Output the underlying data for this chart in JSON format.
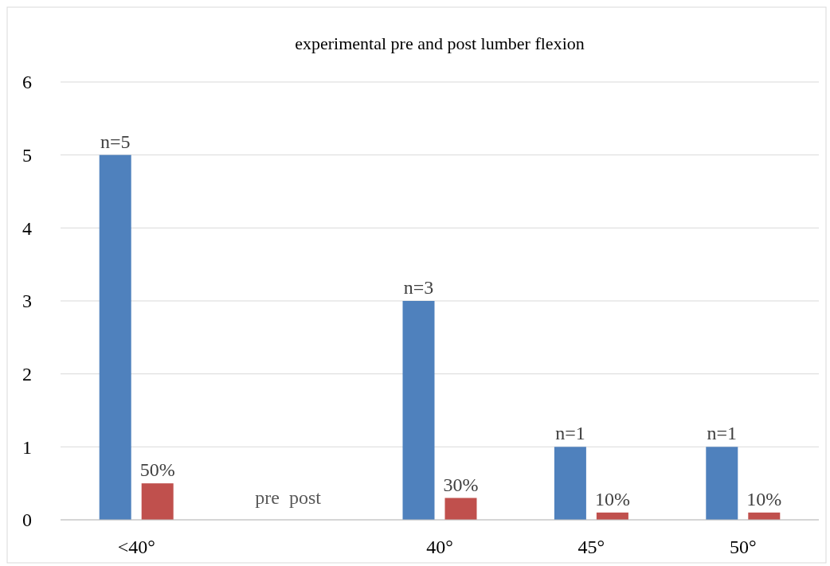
{
  "chart_data": {
    "type": "bar",
    "title": "experimental pre and post lumber flexion",
    "categories": [
      "<40°",
      null,
      "40°",
      "45°",
      "50°"
    ],
    "series": [
      {
        "color": "#4f81bd",
        "values": [
          5,
          null,
          3,
          1,
          1
        ],
        "value_labels": [
          "n=5",
          null,
          "n=3",
          "n=1",
          "n=1"
        ]
      },
      {
        "color": "#c0504d",
        "values": [
          0.5,
          null,
          0.3,
          0.1,
          0.1
        ],
        "value_labels": [
          "50%",
          null,
          "30%",
          "10%",
          "10%"
        ]
      }
    ],
    "ylim": [
      0,
      6
    ],
    "yticks": [
      0,
      1,
      2,
      3,
      4,
      5,
      6
    ],
    "grid": "y",
    "annotations": [
      "pre  post"
    ]
  }
}
